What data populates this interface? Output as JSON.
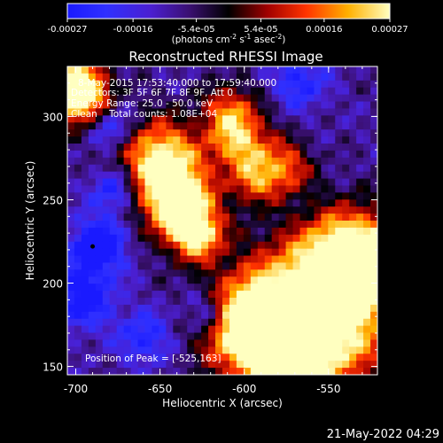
{
  "chart_data": {
    "type": "heatmap",
    "title": "Reconstructed RHESSI Image",
    "xlabel": "Heliocentric X (arcsec)",
    "ylabel": "Heliocentric Y (arcsec)",
    "xlim": [
      -705,
      -521
    ],
    "ylim": [
      145,
      330
    ],
    "x_ticks": [
      {
        "value": -700,
        "label": "-700"
      },
      {
        "value": -650,
        "label": "-650"
      },
      {
        "value": -600,
        "label": "-600"
      },
      {
        "value": -550,
        "label": "-550"
      }
    ],
    "y_ticks": [
      {
        "value": 150,
        "label": "150"
      },
      {
        "value": 200,
        "label": "200"
      },
      {
        "value": 250,
        "label": "250"
      },
      {
        "value": 300,
        "label": "300"
      }
    ],
    "colorbar": {
      "min": -0.00027,
      "max": 0.00027,
      "label_parts": [
        "(photons cm",
        "-2",
        " s",
        "-1",
        " asec",
        "-2",
        ")"
      ],
      "ticks": [
        {
          "value": -0.00027,
          "label": "-0.00027"
        },
        {
          "value": -0.00016,
          "label": "-0.00016"
        },
        {
          "value": -5.4e-05,
          "label": "-5.4e-05"
        },
        {
          "value": 5.4e-05,
          "label": "5.4e-05"
        },
        {
          "value": 0.00016,
          "label": "0.00016"
        },
        {
          "value": 0.00027,
          "label": "0.00027"
        }
      ]
    },
    "annotations": [
      "8-May-2015 17:53:40.000 to 17:59:40.000",
      "Detectors: 3F 5F 6F 7F 8F 9F, Att 0",
      "Energy Range: 25.0 - 50.0 keV",
      "Clean    Total counts: 1.08E+04"
    ],
    "peak_label": "Position of Peak = [-525,163]",
    "peak_position": [
      -525,
      163
    ],
    "timestamp": "21-May-2022 04:29"
  }
}
